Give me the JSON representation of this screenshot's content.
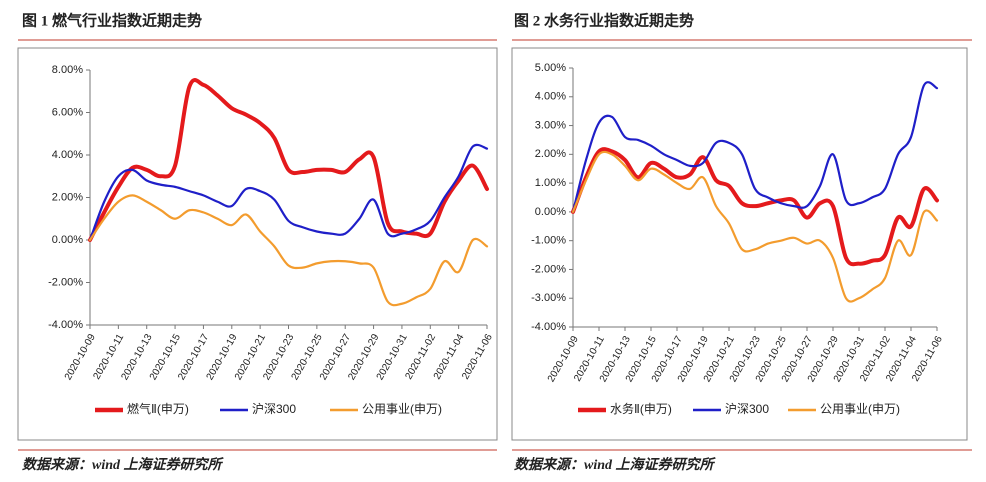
{
  "chart_data": [
    {
      "type": "line",
      "title": "图 1 燃气行业指数近期走势",
      "source": "数据来源：wind 上海证券研究所",
      "categories": [
        "2020-10-09",
        null,
        "2020-10-11",
        null,
        "2020-10-13",
        null,
        "2020-10-15",
        null,
        "2020-10-17",
        null,
        "2020-10-19",
        null,
        "2020-10-21",
        null,
        "2020-10-23",
        null,
        "2020-10-25",
        null,
        "2020-10-27",
        null,
        "2020-10-29",
        null,
        "2020-10-31",
        null,
        "2020-11-02",
        null,
        "2020-11-04",
        null,
        "2020-11-06"
      ],
      "series": [
        {
          "name": "燃气Ⅱ(申万)",
          "color": "#e41a1c",
          "values": [
            0,
            1.3,
            2.5,
            3.4,
            3.3,
            3.0,
            3.5,
            7.2,
            7.3,
            6.8,
            6.2,
            5.9,
            5.5,
            4.8,
            3.3,
            3.2,
            3.3,
            3.3,
            3.2,
            3.8,
            3.9,
            0.8,
            0.4,
            0.3,
            0.3,
            1.8,
            2.8,
            3.5,
            2.4
          ]
        },
        {
          "name": "沪深300",
          "color": "#1f1fc8",
          "values": [
            0,
            1.8,
            3.0,
            3.3,
            2.8,
            2.6,
            2.5,
            2.3,
            2.1,
            1.8,
            1.6,
            2.4,
            2.3,
            1.9,
            0.9,
            0.6,
            0.4,
            0.3,
            0.3,
            1.0,
            1.9,
            0.3,
            0.3,
            0.5,
            0.9,
            2.0,
            3.0,
            4.4,
            4.3
          ]
        },
        {
          "name": "公用事业(申万)",
          "color": "#f39c2e",
          "values": [
            0,
            1.0,
            1.8,
            2.1,
            1.8,
            1.4,
            1.0,
            1.4,
            1.3,
            1.0,
            0.7,
            1.2,
            0.4,
            -0.3,
            -1.2,
            -1.3,
            -1.1,
            -1.0,
            -1.0,
            -1.1,
            -1.3,
            -2.9,
            -3.0,
            -2.7,
            -2.3,
            -1.0,
            -1.5,
            0.0,
            -0.3
          ]
        }
      ],
      "ylim": [
        -4,
        8
      ],
      "yticks": [
        {
          "value": -4,
          "label": "-4.00%"
        },
        {
          "value": -2,
          "label": "-2.00%"
        },
        {
          "value": 0,
          "label": "0.00%"
        },
        {
          "value": 2,
          "label": "2.00%"
        },
        {
          "value": 4,
          "label": "4.00%"
        },
        {
          "value": 6,
          "label": "6.00%"
        },
        {
          "value": 8,
          "label": "8.00%"
        }
      ],
      "grid": false,
      "legend": "bottom"
    },
    {
      "type": "line",
      "title": "图 2 水务行业指数近期走势",
      "source": "数据来源：wind 上海证券研究所",
      "categories": [
        "2020-10-09",
        null,
        "2020-10-11",
        null,
        "2020-10-13",
        null,
        "2020-10-15",
        null,
        "2020-10-17",
        null,
        "2020-10-19",
        null,
        "2020-10-21",
        null,
        "2020-10-23",
        null,
        "2020-10-25",
        null,
        "2020-10-27",
        null,
        "2020-10-29",
        null,
        "2020-10-31",
        null,
        "2020-11-02",
        null,
        "2020-11-04",
        null,
        "2020-11-06"
      ],
      "series": [
        {
          "name": "水务Ⅱ(申万)",
          "color": "#e41a1c",
          "values": [
            0,
            1.2,
            2.1,
            2.1,
            1.8,
            1.2,
            1.7,
            1.5,
            1.2,
            1.3,
            1.9,
            1.1,
            0.9,
            0.3,
            0.2,
            0.3,
            0.4,
            0.4,
            -0.2,
            0.3,
            0.2,
            -1.6,
            -1.8,
            -1.7,
            -1.5,
            -0.2,
            -0.5,
            0.8,
            0.4
          ]
        },
        {
          "name": "沪深300",
          "color": "#1f1fc8",
          "values": [
            0,
            1.8,
            3.1,
            3.3,
            2.6,
            2.5,
            2.3,
            2.0,
            1.8,
            1.6,
            1.7,
            2.4,
            2.4,
            2.0,
            0.8,
            0.5,
            0.3,
            0.2,
            0.2,
            0.9,
            2.0,
            0.4,
            0.3,
            0.5,
            0.8,
            2.0,
            2.6,
            4.4,
            4.3
          ]
        },
        {
          "name": "公用事业(申万)",
          "color": "#f39c2e",
          "values": [
            0,
            1.1,
            2.0,
            2.0,
            1.6,
            1.1,
            1.5,
            1.3,
            1.0,
            0.8,
            1.2,
            0.2,
            -0.4,
            -1.3,
            -1.3,
            -1.1,
            -1.0,
            -0.9,
            -1.1,
            -1.0,
            -1.6,
            -3.0,
            -3.0,
            -2.7,
            -2.3,
            -1.0,
            -1.5,
            0.0,
            -0.3
          ]
        }
      ],
      "ylim": [
        -4,
        5
      ],
      "yticks": [
        {
          "value": -4,
          "label": "-4.00%"
        },
        {
          "value": -3,
          "label": "-3.00%"
        },
        {
          "value": -2,
          "label": "-2.00%"
        },
        {
          "value": -1,
          "label": "-1.00%"
        },
        {
          "value": 0,
          "label": "0.00%"
        },
        {
          "value": 1,
          "label": "1.00%"
        },
        {
          "value": 2,
          "label": "2.00%"
        },
        {
          "value": 3,
          "label": "3.00%"
        },
        {
          "value": 4,
          "label": "4.00%"
        },
        {
          "value": 5,
          "label": "5.00%"
        }
      ],
      "grid": false,
      "legend": "bottom"
    }
  ]
}
